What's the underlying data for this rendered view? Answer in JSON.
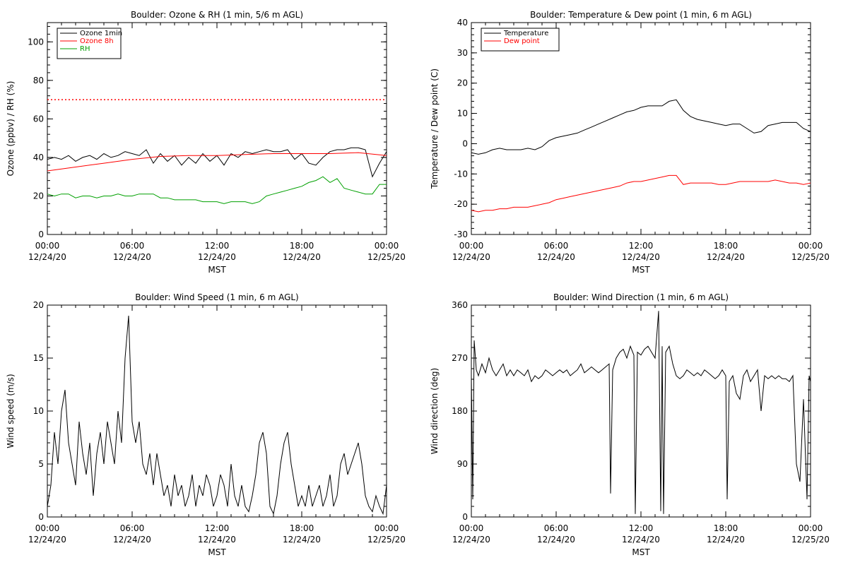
{
  "x_ticks": [
    {
      "hour": 0,
      "label_time": "00:00",
      "label_date": "12/24/20"
    },
    {
      "hour": 6,
      "label_time": "06:00",
      "label_date": "12/24/20"
    },
    {
      "hour": 12,
      "label_time": "12:00",
      "label_date": "12/24/20"
    },
    {
      "hour": 18,
      "label_time": "18:00",
      "label_date": "12/24/20"
    },
    {
      "hour": 24,
      "label_time": "00:00",
      "label_date": "12/25/20"
    }
  ],
  "colors": {
    "ozone_1min": "#000000",
    "ozone_8h": "#ff0000",
    "rh": "#00a000",
    "temperature": "#000000",
    "dew_point": "#ff0000",
    "wind": "#000000"
  },
  "chart_data": [
    {
      "id": "ozone",
      "type": "line",
      "title": "Boulder: Ozone & RH (1 min, 5/6 m AGL)",
      "xlabel": "MST",
      "ylabel": "Ozone (ppbv) / RH (%)",
      "xlim": [
        0,
        24
      ],
      "ylim": [
        0,
        110
      ],
      "yticks": [
        0,
        20,
        40,
        60,
        80,
        100
      ],
      "legend_position": "top-left",
      "reference_line": {
        "y": 70,
        "color": "#ff0000",
        "style": "dotted"
      },
      "series": [
        {
          "name": "Ozone 1min",
          "color": "#000000",
          "x": [
            0,
            0.5,
            1,
            1.5,
            2,
            2.5,
            3,
            3.5,
            4,
            4.5,
            5,
            5.5,
            6,
            6.5,
            7,
            7.5,
            8,
            8.5,
            9,
            9.5,
            10,
            10.5,
            11,
            11.5,
            12,
            12.5,
            13,
            13.5,
            14,
            14.5,
            15,
            15.5,
            16,
            16.5,
            17,
            17.5,
            18,
            18.5,
            19,
            19.5,
            20,
            20.5,
            21,
            21.5,
            22,
            22.5,
            23,
            23.5,
            24
          ],
          "y": [
            39,
            40,
            39,
            41,
            38,
            40,
            41,
            39,
            42,
            40,
            41,
            43,
            42,
            41,
            44,
            37,
            42,
            38,
            41,
            36,
            40,
            37,
            42,
            38,
            41,
            36,
            42,
            40,
            43,
            42,
            43,
            44,
            43,
            43,
            44,
            39,
            42,
            37,
            36,
            40,
            43,
            44,
            44,
            45,
            45,
            44,
            30,
            37,
            43
          ]
        },
        {
          "name": "Ozone 8h",
          "color": "#ff0000",
          "x": [
            0,
            2,
            4,
            6,
            8,
            10,
            12,
            14,
            16,
            18,
            20,
            22,
            24
          ],
          "y": [
            33,
            35,
            37,
            39,
            40.5,
            41,
            41,
            41.5,
            42,
            42,
            42,
            42.5,
            41
          ]
        },
        {
          "name": "RH",
          "color": "#00a000",
          "x": [
            0,
            0.5,
            1,
            1.5,
            2,
            2.5,
            3,
            3.5,
            4,
            4.5,
            5,
            5.5,
            6,
            6.5,
            7,
            7.5,
            8,
            8.5,
            9,
            9.5,
            10,
            10.5,
            11,
            11.5,
            12,
            12.5,
            13,
            13.5,
            14,
            14.5,
            15,
            15.5,
            16,
            16.5,
            17,
            17.5,
            18,
            18.5,
            19,
            19.5,
            20,
            20.5,
            21,
            21.5,
            22,
            22.5,
            23,
            23.5,
            24
          ],
          "y": [
            21,
            20,
            21,
            21,
            19,
            20,
            20,
            19,
            20,
            20,
            21,
            20,
            20,
            21,
            21,
            21,
            19,
            19,
            18,
            18,
            18,
            18,
            17,
            17,
            17,
            16,
            17,
            17,
            17,
            16,
            17,
            20,
            21,
            22,
            23,
            24,
            25,
            27,
            28,
            30,
            27,
            29,
            24,
            23,
            22,
            21,
            21,
            26,
            26
          ]
        }
      ]
    },
    {
      "id": "temperature",
      "type": "line",
      "title": "Boulder: Temperature & Dew point (1 min, 6 m AGL)",
      "xlabel": "MST",
      "ylabel": "Temperature / Dew point (C)",
      "xlim": [
        0,
        24
      ],
      "ylim": [
        -30,
        40
      ],
      "yticks": [
        -30,
        -20,
        -10,
        0,
        10,
        20,
        30,
        40
      ],
      "legend_position": "top-left",
      "series": [
        {
          "name": "Temperature",
          "color": "#000000",
          "x": [
            0,
            0.5,
            1,
            1.5,
            2,
            2.5,
            3,
            3.5,
            4,
            4.5,
            5,
            5.5,
            6,
            6.5,
            7,
            7.5,
            8,
            8.5,
            9,
            9.5,
            10,
            10.5,
            11,
            11.5,
            12,
            12.5,
            13,
            13.5,
            14,
            14.5,
            15,
            15.5,
            16,
            16.5,
            17,
            17.5,
            18,
            18.5,
            19,
            19.5,
            20,
            20.5,
            21,
            21.5,
            22,
            22.5,
            23,
            23.5,
            24
          ],
          "y": [
            -3,
            -3.5,
            -3,
            -2,
            -1.5,
            -2,
            -2,
            -2,
            -1.5,
            -2,
            -1,
            1,
            2,
            2.5,
            3,
            3.5,
            4.5,
            5.5,
            6.5,
            7.5,
            8.5,
            9.5,
            10.5,
            11,
            12,
            12.5,
            12.5,
            12.5,
            14,
            14.5,
            11,
            9,
            8,
            7.5,
            7,
            6.5,
            6,
            6.5,
            6.5,
            5,
            3.5,
            4,
            6,
            6.5,
            7,
            7,
            7,
            5,
            4
          ]
        },
        {
          "name": "Dew point",
          "color": "#ff0000",
          "x": [
            0,
            0.5,
            1,
            1.5,
            2,
            2.5,
            3,
            3.5,
            4,
            4.5,
            5,
            5.5,
            6,
            6.5,
            7,
            7.5,
            8,
            8.5,
            9,
            9.5,
            10,
            10.5,
            11,
            11.5,
            12,
            12.5,
            13,
            13.5,
            14,
            14.5,
            15,
            15.5,
            16,
            16.5,
            17,
            17.5,
            18,
            18.5,
            19,
            19.5,
            20,
            20.5,
            21,
            21.5,
            22,
            22.5,
            23,
            23.5,
            24
          ],
          "y": [
            -22,
            -22.5,
            -22,
            -22,
            -21.5,
            -21.5,
            -21,
            -21,
            -21,
            -20.5,
            -20,
            -19.5,
            -18.5,
            -18,
            -17.5,
            -17,
            -16.5,
            -16,
            -15.5,
            -15,
            -14.5,
            -14,
            -13,
            -12.5,
            -12.5,
            -12,
            -11.5,
            -11,
            -10.5,
            -10.5,
            -13.5,
            -13,
            -13,
            -13,
            -13,
            -13.5,
            -13.5,
            -13,
            -12.5,
            -12.5,
            -12.5,
            -12.5,
            -12.5,
            -12,
            -12.5,
            -13,
            -13,
            -13.5,
            -13
          ]
        }
      ]
    },
    {
      "id": "wind_speed",
      "type": "line",
      "title": "Boulder: Wind Speed (1 min, 6 m AGL)",
      "xlabel": "MST",
      "ylabel": "Wind speed (m/s)",
      "xlim": [
        0,
        24
      ],
      "ylim": [
        0,
        20
      ],
      "yticks": [
        0,
        5,
        10,
        15,
        20
      ],
      "series": [
        {
          "color": "#000000",
          "x": [
            0,
            0.25,
            0.5,
            0.75,
            1,
            1.25,
            1.5,
            1.75,
            2,
            2.25,
            2.5,
            2.75,
            3,
            3.25,
            3.5,
            3.75,
            4,
            4.25,
            4.5,
            4.75,
            5,
            5.25,
            5.5,
            5.75,
            6,
            6.25,
            6.5,
            6.75,
            7,
            7.25,
            7.5,
            7.75,
            8,
            8.25,
            8.5,
            8.75,
            9,
            9.25,
            9.5,
            9.75,
            10,
            10.25,
            10.5,
            10.75,
            11,
            11.25,
            11.5,
            11.75,
            12,
            12.25,
            12.5,
            12.75,
            13,
            13.25,
            13.5,
            13.75,
            14,
            14.25,
            14.5,
            14.75,
            15,
            15.25,
            15.5,
            15.75,
            16,
            16.25,
            16.5,
            16.75,
            17,
            17.25,
            17.5,
            17.75,
            18,
            18.25,
            18.5,
            18.75,
            19,
            19.25,
            19.5,
            19.75,
            20,
            20.25,
            20.5,
            20.75,
            21,
            21.25,
            21.5,
            21.75,
            22,
            22.25,
            22.5,
            22.75,
            23,
            23.25,
            23.5,
            23.75,
            24
          ],
          "y": [
            1,
            3,
            8,
            5,
            10,
            12,
            7,
            5,
            3,
            9,
            6,
            4,
            7,
            2,
            6,
            8,
            5,
            9,
            7,
            5,
            10,
            7,
            15,
            19,
            9,
            7,
            9,
            5,
            4,
            6,
            3,
            6,
            4,
            2,
            3,
            1,
            4,
            2,
            3,
            1,
            2,
            4,
            1,
            3,
            2,
            4,
            3,
            1,
            2,
            4,
            3,
            1,
            5,
            2,
            1,
            3,
            1,
            0.5,
            2,
            4,
            7,
            8,
            6,
            1,
            0.3,
            2,
            5,
            7,
            8,
            5,
            3,
            1,
            2,
            1,
            3,
            1,
            2,
            3,
            1,
            2,
            4,
            1,
            2,
            5,
            6,
            4,
            5,
            6,
            7,
            5,
            2,
            1,
            0.5,
            2,
            1,
            0.3,
            3
          ]
        }
      ]
    },
    {
      "id": "wind_direction",
      "type": "line",
      "title": "Boulder: Wind Direction (1 min, 6 m AGL)",
      "xlabel": "MST",
      "ylabel": "Wind direction (deg)",
      "xlim": [
        0,
        24
      ],
      "ylim": [
        0,
        360
      ],
      "yticks": [
        0,
        90,
        180,
        270,
        360
      ],
      "series": [
        {
          "color": "#000000",
          "x": [
            0,
            0.1,
            0.2,
            0.35,
            0.5,
            0.75,
            1,
            1.25,
            1.5,
            1.75,
            2,
            2.25,
            2.5,
            2.75,
            3,
            3.25,
            3.5,
            3.75,
            4,
            4.25,
            4.5,
            4.75,
            5,
            5.25,
            5.5,
            5.75,
            6,
            6.25,
            6.5,
            6.75,
            7,
            7.25,
            7.5,
            7.75,
            8,
            8.25,
            8.5,
            8.75,
            9,
            9.25,
            9.5,
            9.75,
            9.85,
            10,
            10.25,
            10.5,
            10.75,
            11,
            11.25,
            11.5,
            11.6,
            11.75,
            12,
            12.25,
            12.5,
            12.75,
            13,
            13.25,
            13.4,
            13.5,
            13.6,
            13.75,
            14,
            14.25,
            14.5,
            14.75,
            15,
            15.25,
            15.5,
            15.75,
            16,
            16.25,
            16.5,
            16.75,
            17,
            17.25,
            17.5,
            17.75,
            18,
            18.1,
            18.25,
            18.5,
            18.75,
            19,
            19.25,
            19.5,
            19.75,
            20,
            20.25,
            20.5,
            20.75,
            21,
            21.25,
            21.5,
            21.75,
            22,
            22.25,
            22.5,
            22.75,
            23,
            23.25,
            23.5,
            23.75,
            23.9,
            24
          ],
          "y": [
            240,
            30,
            300,
            250,
            240,
            260,
            245,
            270,
            250,
            240,
            250,
            260,
            240,
            250,
            240,
            250,
            245,
            240,
            250,
            230,
            240,
            235,
            240,
            250,
            245,
            240,
            245,
            250,
            245,
            250,
            240,
            245,
            250,
            260,
            245,
            250,
            255,
            250,
            245,
            250,
            255,
            260,
            40,
            250,
            270,
            280,
            285,
            270,
            290,
            275,
            5,
            280,
            275,
            285,
            290,
            280,
            270,
            350,
            10,
            290,
            5,
            280,
            290,
            260,
            240,
            235,
            240,
            250,
            245,
            240,
            245,
            240,
            250,
            245,
            240,
            235,
            240,
            250,
            240,
            30,
            230,
            240,
            210,
            200,
            240,
            250,
            230,
            240,
            250,
            180,
            240,
            235,
            240,
            235,
            240,
            235,
            235,
            230,
            240,
            90,
            60,
            200,
            30,
            240,
            230
          ]
        }
      ]
    }
  ]
}
